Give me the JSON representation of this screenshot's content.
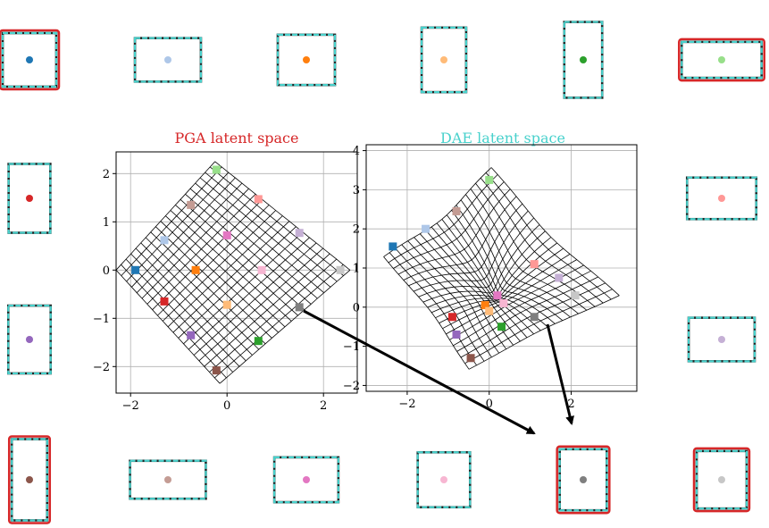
{
  "figure": {
    "colors": [
      "#1f77b4",
      "#aec7e8",
      "#ff7f0e",
      "#ffbb78",
      "#2ca02c",
      "#98df8a",
      "#d62728",
      "#ff9896",
      "#9467bd",
      "#c5b0d5",
      "#8c564b",
      "#c49c94",
      "#e377c2",
      "#f7b6d2",
      "#7f7f7f",
      "#c7c7c7"
    ],
    "shape_outline_color": "#48d1cc",
    "shape_perturbation_color": "#d62728"
  },
  "chart_data": [
    {
      "type": "scatter",
      "title": "PGA latent space",
      "title_color": "#d62728",
      "xlabel": "",
      "ylabel": "",
      "xlim": [
        -2.3,
        2.7
      ],
      "ylim": [
        -2.55,
        2.45
      ],
      "xticks": [
        -2,
        0,
        2
      ],
      "yticks": [
        -2,
        -1,
        0,
        1,
        2
      ],
      "xtick_labels": [
        "−2",
        "0",
        "2"
      ],
      "ytick_labels": [
        "−2",
        "−1",
        "0",
        "1",
        "2"
      ],
      "grid": true,
      "points": [
        {
          "x": -1.9,
          "y": 0.0,
          "color_index": 0
        },
        {
          "x": -1.3,
          "y": 0.62,
          "color_index": 1
        },
        {
          "x": -0.65,
          "y": 0.0,
          "color_index": 2
        },
        {
          "x": 0.0,
          "y": -0.72,
          "color_index": 3
        },
        {
          "x": 0.65,
          "y": -1.47,
          "color_index": 4
        },
        {
          "x": -0.22,
          "y": 2.08,
          "color_index": 5
        },
        {
          "x": -1.3,
          "y": -0.65,
          "color_index": 6
        },
        {
          "x": 0.65,
          "y": 1.47,
          "color_index": 7
        },
        {
          "x": -0.75,
          "y": -1.35,
          "color_index": 8
        },
        {
          "x": 1.5,
          "y": 0.77,
          "color_index": 9
        },
        {
          "x": -0.22,
          "y": -2.08,
          "color_index": 10
        },
        {
          "x": -0.75,
          "y": 1.35,
          "color_index": 11
        },
        {
          "x": 0.0,
          "y": 0.72,
          "color_index": 12
        },
        {
          "x": 0.72,
          "y": 0.0,
          "color_index": 13
        },
        {
          "x": 1.5,
          "y": -0.77,
          "color_index": 14
        },
        {
          "x": 2.35,
          "y": 0.0,
          "color_index": 15
        }
      ]
    },
    {
      "type": "scatter",
      "title": "DAE latent space",
      "title_color": "#48d1cc",
      "xlabel": "",
      "ylabel": "",
      "xlim": [
        -3.0,
        3.6
      ],
      "ylim": [
        -2.15,
        4.15
      ],
      "xticks": [
        -2,
        0,
        2
      ],
      "yticks": [
        -2,
        -1,
        0,
        1,
        2,
        3,
        4
      ],
      "xtick_labels": [
        "−2",
        "0",
        "2"
      ],
      "ytick_labels": [
        "−2",
        "−1",
        "0",
        "1",
        "2",
        "3",
        "4"
      ],
      "grid": true,
      "points": [
        {
          "x": -2.35,
          "y": 1.55,
          "color_index": 0
        },
        {
          "x": -1.55,
          "y": 2.0,
          "color_index": 1
        },
        {
          "x": -0.1,
          "y": 0.05,
          "color_index": 2
        },
        {
          "x": 0.0,
          "y": -0.1,
          "color_index": 3
        },
        {
          "x": 0.3,
          "y": -0.5,
          "color_index": 4
        },
        {
          "x": 0.0,
          "y": 3.25,
          "color_index": 5
        },
        {
          "x": -0.9,
          "y": -0.25,
          "color_index": 6
        },
        {
          "x": 1.1,
          "y": 1.1,
          "color_index": 7
        },
        {
          "x": -0.8,
          "y": -0.7,
          "color_index": 8
        },
        {
          "x": 1.7,
          "y": 0.75,
          "color_index": 9
        },
        {
          "x": -0.45,
          "y": -1.3,
          "color_index": 10
        },
        {
          "x": -0.8,
          "y": 2.45,
          "color_index": 11
        },
        {
          "x": 0.2,
          "y": 0.3,
          "color_index": 12
        },
        {
          "x": 0.35,
          "y": 0.1,
          "color_index": 13
        },
        {
          "x": 1.1,
          "y": -0.25,
          "color_index": 14
        },
        {
          "x": 2.1,
          "y": 0.3,
          "color_index": 15
        }
      ]
    }
  ],
  "shapes": [
    {
      "color_index": 0,
      "aspect": 1.0,
      "perturbed": true
    },
    {
      "color_index": 1,
      "aspect": 0.66,
      "perturbed": false
    },
    {
      "color_index": 2,
      "aspect": 0.88,
      "perturbed": false
    },
    {
      "color_index": 3,
      "aspect": 1.45,
      "perturbed": false
    },
    {
      "color_index": 4,
      "aspect": 2.0,
      "perturbed": false
    },
    {
      "color_index": 5,
      "aspect": 0.45,
      "perturbed": true
    },
    {
      "color_index": 6,
      "aspect": 1.65,
      "perturbed": false
    },
    {
      "color_index": 7,
      "aspect": 0.6,
      "perturbed": false
    },
    {
      "color_index": 8,
      "aspect": 1.6,
      "perturbed": false
    },
    {
      "color_index": 9,
      "aspect": 0.66,
      "perturbed": false
    },
    {
      "color_index": 10,
      "aspect": 2.3,
      "perturbed": true
    },
    {
      "color_index": 11,
      "aspect": 0.5,
      "perturbed": false
    },
    {
      "color_index": 12,
      "aspect": 0.7,
      "perturbed": false
    },
    {
      "color_index": 13,
      "aspect": 1.05,
      "perturbed": false
    },
    {
      "color_index": 14,
      "aspect": 1.3,
      "perturbed": true
    },
    {
      "color_index": 15,
      "aspect": 1.15,
      "perturbed": true
    }
  ]
}
